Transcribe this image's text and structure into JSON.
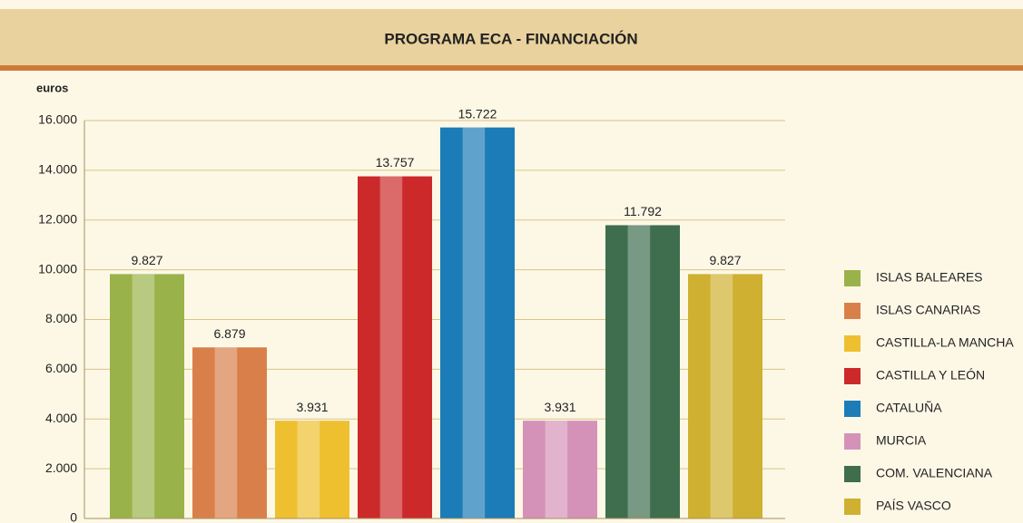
{
  "chart_data": {
    "type": "bar",
    "title": "PROGRAMA ECA - FINANCIACIÓN",
    "y_label": "euros",
    "categories": [
      "ISLAS BALEARES",
      "ISLAS CANARIAS",
      "CASTILLA-LA MANCHA",
      "CASTILLA Y LEÓN",
      "CATALUÑA",
      "MURCIA",
      "COM. VALENCIANA",
      "PAÍS VASCO"
    ],
    "values": [
      9827,
      6879,
      3931,
      13757,
      15722,
      3931,
      11792,
      9827
    ],
    "value_labels": [
      "9.827",
      "6.879",
      "3.931",
      "13.757",
      "15.722",
      "3.931",
      "11.792",
      "9.827"
    ],
    "colors": [
      "#9ab24a",
      "#d9804a",
      "#eec030",
      "#cc2a2a",
      "#1b7cb8",
      "#d592b8",
      "#3e6e4e",
      "#cfb030"
    ],
    "ylim": [
      0,
      16000
    ],
    "yticks": [
      0,
      {
        "value": 2000,
        "label": "2.000"
      },
      {
        "value": 4000,
        "label": "4.000"
      },
      {
        "value": 6000,
        "label": "6.000"
      },
      {
        "value": 8000,
        "label": "8.000"
      },
      {
        "value": 10000,
        "label": "10.000"
      },
      {
        "value": 12000,
        "label": "12.000"
      },
      {
        "value": 14000,
        "label": "14.000"
      },
      {
        "value": 16000,
        "label": "16.000"
      }
    ],
    "grid": true,
    "legend": "right"
  }
}
